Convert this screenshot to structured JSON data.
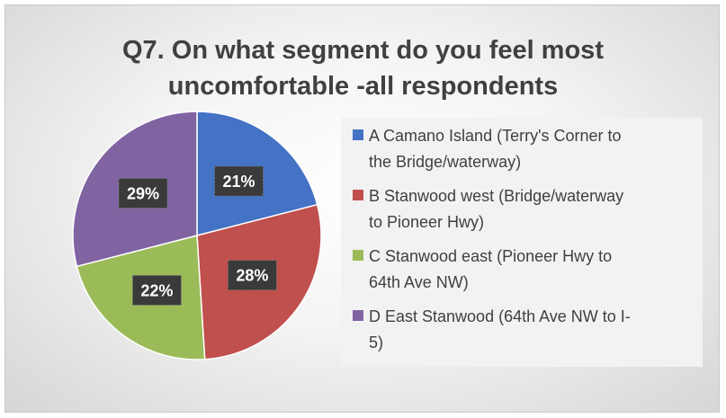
{
  "chart_data": {
    "type": "pie",
    "title_lines": [
      "Q7. On what segment do you feel most",
      "uncomfortable -all respondents"
    ],
    "slices": [
      {
        "label": "A Camano Island (Terry's Corner to the Bridge/waterway)",
        "legend_lines": [
          "A Camano Island (Terry's Corner to",
          "the Bridge/waterway)"
        ],
        "value": 21,
        "display": "21%",
        "color": "#4472c4"
      },
      {
        "label": "B Stanwood west (Bridge/waterway to Pioneer Hwy)",
        "legend_lines": [
          "B Stanwood west (Bridge/waterway",
          "to Pioneer Hwy)"
        ],
        "value": 28,
        "display": "28%",
        "color": "#c0504d"
      },
      {
        "label": "C Stanwood east (Pioneer Hwy to 64th Ave NW)",
        "legend_lines": [
          "C Stanwood east (Pioneer Hwy to",
          "64th Ave NW)"
        ],
        "value": 22,
        "display": "22%",
        "color": "#9bbb59"
      },
      {
        "label": "D East Stanwood (64th Ave NW to I-5)",
        "legend_lines": [
          "D East Stanwood (64th Ave NW to I-",
          "5)"
        ],
        "value": 29,
        "display": "29%",
        "color": "#8064a2"
      }
    ],
    "start_angle_deg": 0,
    "direction": "clockwise",
    "legend_position": "right"
  }
}
